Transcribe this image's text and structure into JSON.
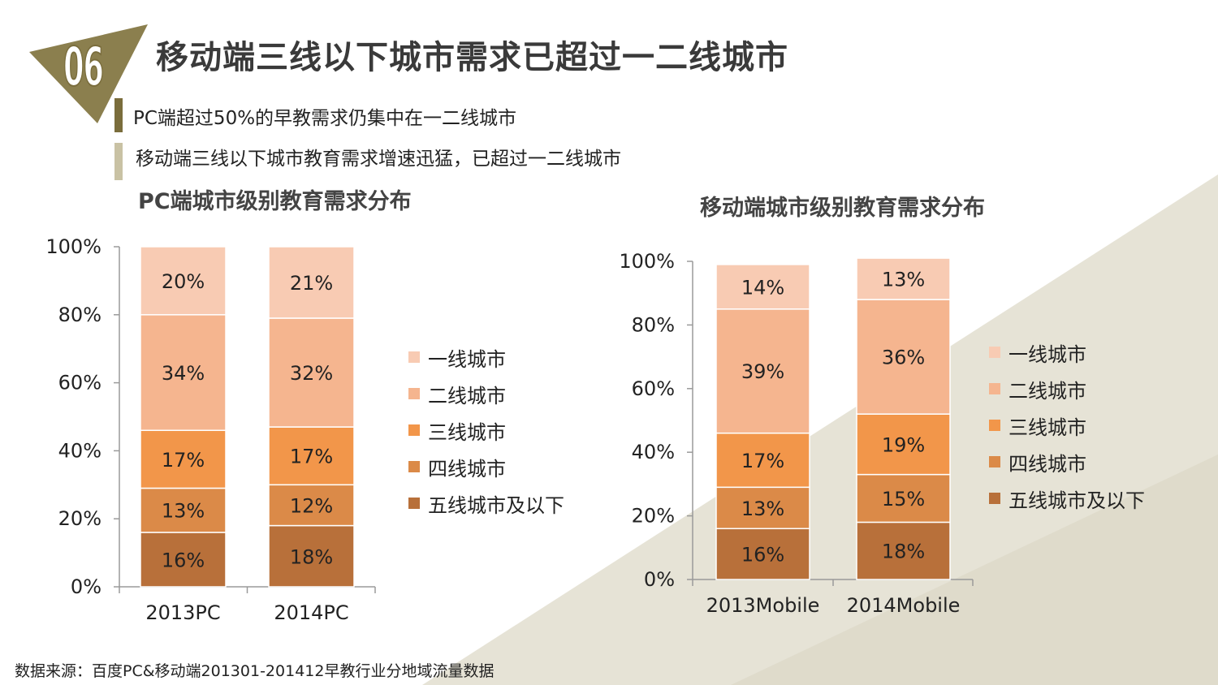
{
  "header": {
    "section_number": "06",
    "title": "移动端三线以下城市需求已超过一二线城市"
  },
  "bullets": [
    {
      "text": "PC端超过50%的早教需求仍集中在一二线城市",
      "color": "#7a6d3c"
    },
    {
      "text": "移动端三线以下城市教育需求增速迅猛，已超过一二线城市",
      "color": "#c9c2a4"
    }
  ],
  "footer": {
    "source": "数据来源：百度PC&移动端201301-201412早教行业分地域流量数据"
  },
  "colors": {
    "tier1": "#f8cbb3",
    "tier2": "#f5b58f",
    "tier3": "#f2964a",
    "tier4": "#db8a48",
    "tier5": "#b8703a",
    "triangle": "#8b7f4e",
    "background_shape": "#e6e3d6"
  },
  "chart_data": [
    {
      "type": "bar",
      "stacked": true,
      "title": "PC端城市级别教育需求分布",
      "categories": [
        "2013PC",
        "2014PC"
      ],
      "ylim": [
        0,
        100
      ],
      "y_ticks": [
        "0%",
        "20%",
        "40%",
        "60%",
        "80%",
        "100%"
      ],
      "series": [
        {
          "name": "五线城市及以下",
          "values": [
            16,
            18
          ],
          "labels": [
            "16%",
            "18%"
          ]
        },
        {
          "name": "四线城市",
          "values": [
            13,
            12
          ],
          "labels": [
            "13%",
            "12%"
          ]
        },
        {
          "name": "三线城市",
          "values": [
            17,
            17
          ],
          "labels": [
            "17%",
            "17%"
          ]
        },
        {
          "name": "二线城市",
          "values": [
            34,
            32
          ],
          "labels": [
            "34%",
            "32%"
          ]
        },
        {
          "name": "一线城市",
          "values": [
            20,
            21
          ],
          "labels": [
            "20%",
            "21%"
          ]
        }
      ],
      "legend": [
        "一线城市",
        "二线城市",
        "三线城市",
        "四线城市",
        "五线城市及以下"
      ],
      "legend_position": "right"
    },
    {
      "type": "bar",
      "stacked": true,
      "title": "移动端城市级别教育需求分布",
      "categories": [
        "2013Mobile",
        "2014Mobile"
      ],
      "ylim": [
        0,
        100
      ],
      "y_ticks": [
        "0%",
        "20%",
        "40%",
        "60%",
        "80%",
        "100%"
      ],
      "series": [
        {
          "name": "五线城市及以下",
          "values": [
            16,
            18
          ],
          "labels": [
            "16%",
            "18%"
          ]
        },
        {
          "name": "四线城市",
          "values": [
            13,
            15
          ],
          "labels": [
            "13%",
            "15%"
          ]
        },
        {
          "name": "三线城市",
          "values": [
            17,
            19
          ],
          "labels": [
            "17%",
            "19%"
          ]
        },
        {
          "name": "二线城市",
          "values": [
            39,
            36
          ],
          "labels": [
            "39%",
            "36%"
          ]
        },
        {
          "name": "一线城市",
          "values": [
            14,
            13
          ],
          "labels": [
            "14%",
            "13%"
          ]
        }
      ],
      "legend": [
        "一线城市",
        "二线城市",
        "三线城市",
        "四线城市",
        "五线城市及以下"
      ],
      "legend_position": "right"
    }
  ]
}
